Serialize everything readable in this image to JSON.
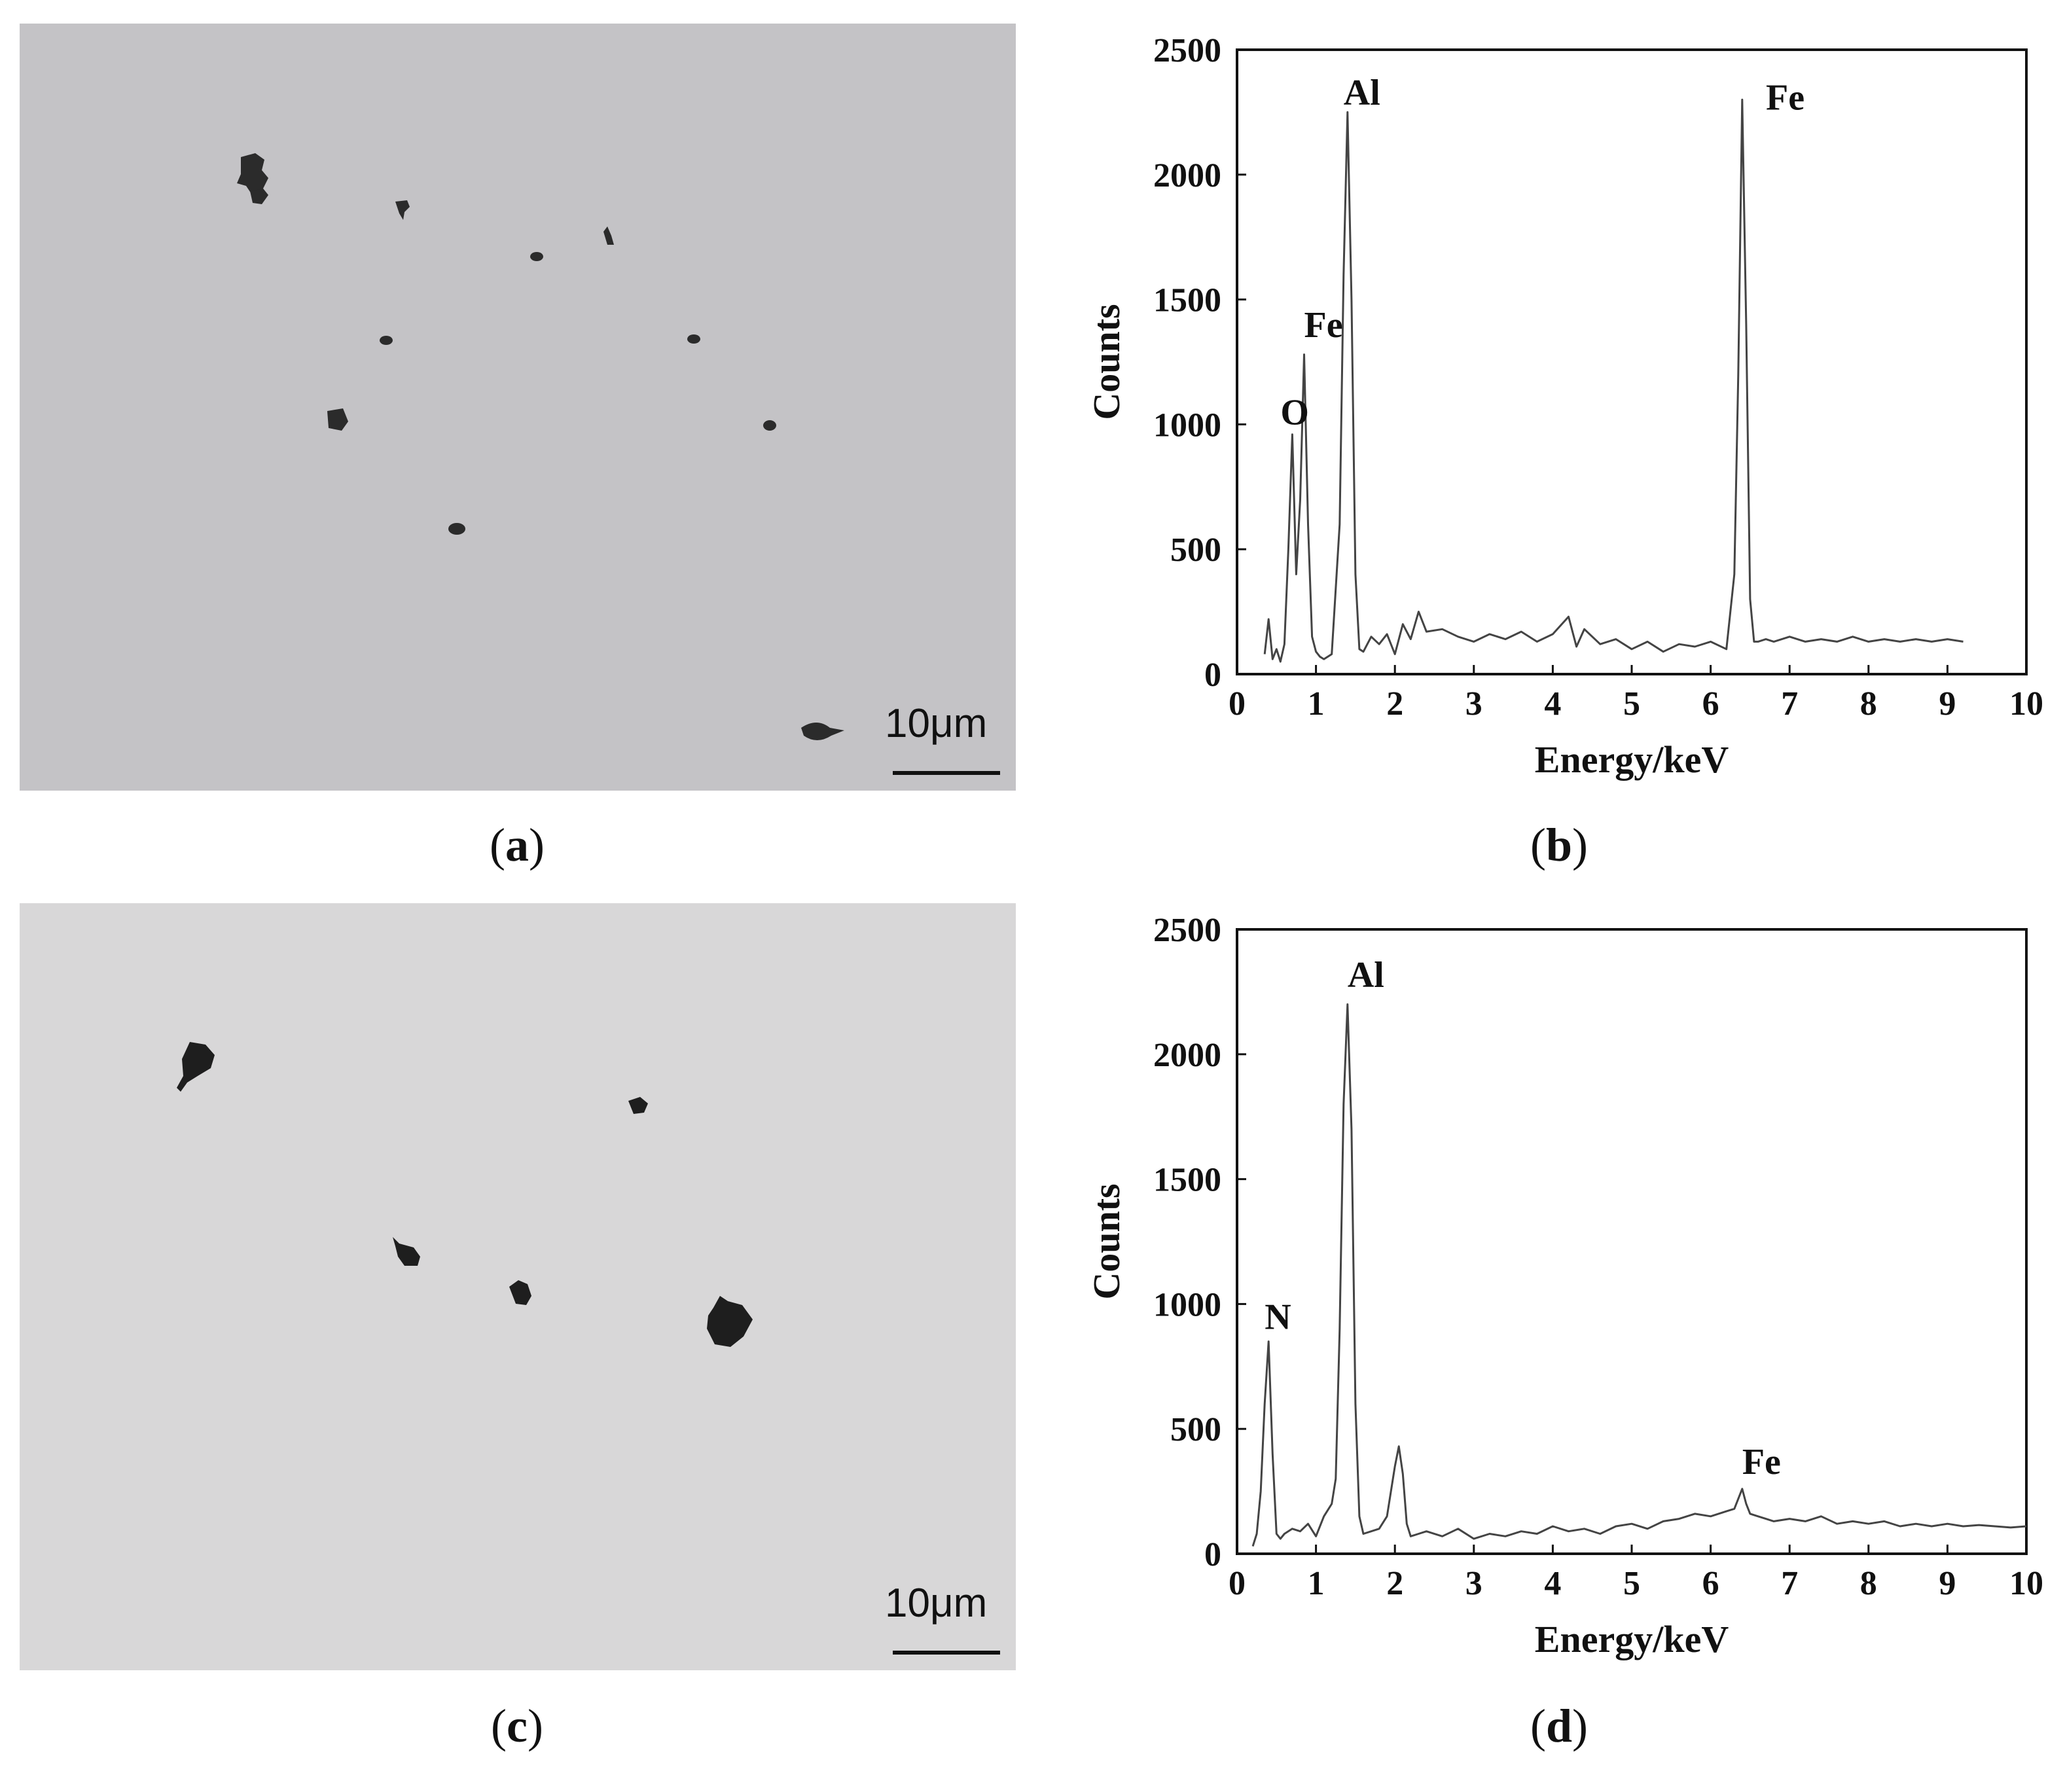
{
  "panels": {
    "a": {
      "caption_letter": "a",
      "scale_label": "10μm",
      "background": "#c4c3c6",
      "inclusion_color": "#2b2b2b"
    },
    "c": {
      "caption_letter": "c",
      "scale_label": "10μm",
      "background": "#d8d7d8",
      "inclusion_color": "#1e1e1e"
    },
    "b": {
      "caption_letter": "b"
    },
    "d": {
      "caption_letter": "d"
    }
  },
  "chart_data": [
    {
      "panel": "b",
      "type": "line",
      "title": "",
      "xlabel": "Energy/keV",
      "ylabel": "Counts",
      "xlim": [
        0,
        10
      ],
      "ylim": [
        0,
        2500
      ],
      "xticks": [
        0,
        1,
        2,
        3,
        4,
        5,
        6,
        7,
        8,
        9,
        10
      ],
      "yticks": [
        0,
        500,
        1000,
        1500,
        2000,
        2500
      ],
      "line_color": "#444444",
      "series": [
        {
          "x": [
            0.35,
            0.4,
            0.45,
            0.5,
            0.55,
            0.6,
            0.65,
            0.7,
            0.75,
            0.8,
            0.85,
            0.9,
            0.95,
            1.0,
            1.05,
            1.1,
            1.2,
            1.3,
            1.35,
            1.4,
            1.45,
            1.5,
            1.55,
            1.6,
            1.7,
            1.8,
            1.9,
            2.0,
            2.1,
            2.2,
            2.3,
            2.4,
            2.6,
            2.8,
            3.0,
            3.2,
            3.4,
            3.6,
            3.8,
            4.0,
            4.2,
            4.3,
            4.4,
            4.6,
            4.8,
            5.0,
            5.2,
            5.4,
            5.6,
            5.8,
            6.0,
            6.2,
            6.3,
            6.35,
            6.4,
            6.45,
            6.5,
            6.55,
            6.6,
            6.7,
            6.8,
            7.0,
            7.2,
            7.4,
            7.6,
            7.8,
            8.0,
            8.2,
            8.4,
            8.6,
            8.8,
            9.0,
            9.2
          ],
          "y": [
            80,
            220,
            60,
            100,
            50,
            120,
            500,
            960,
            400,
            700,
            1280,
            600,
            150,
            90,
            70,
            60,
            80,
            600,
            1600,
            2250,
            1500,
            400,
            100,
            90,
            150,
            120,
            160,
            80,
            200,
            140,
            250,
            170,
            180,
            150,
            130,
            160,
            140,
            170,
            130,
            160,
            230,
            110,
            180,
            120,
            140,
            100,
            130,
            90,
            120,
            110,
            130,
            100,
            400,
            1200,
            2300,
            1400,
            300,
            130,
            130,
            140,
            130,
            150,
            130,
            140,
            130,
            150,
            130,
            140,
            130,
            140,
            130,
            140,
            130
          ]
        }
      ],
      "annotations": [
        {
          "text": "O",
          "x": 0.55,
          "y": 1000
        },
        {
          "text": "Fe",
          "x": 0.85,
          "y": 1350
        },
        {
          "text": "Al",
          "x": 1.35,
          "y": 2280
        },
        {
          "text": "Fe",
          "x": 6.7,
          "y": 2260
        }
      ]
    },
    {
      "panel": "d",
      "type": "line",
      "title": "",
      "xlabel": "Energy/keV",
      "ylabel": "Counts",
      "xlim": [
        0,
        10
      ],
      "ylim": [
        0,
        2500
      ],
      "xticks": [
        0,
        1,
        2,
        3,
        4,
        5,
        6,
        7,
        8,
        9,
        10
      ],
      "yticks": [
        0,
        500,
        1000,
        1500,
        2000,
        2500
      ],
      "line_color": "#444444",
      "series": [
        {
          "x": [
            0.2,
            0.25,
            0.3,
            0.35,
            0.4,
            0.45,
            0.5,
            0.55,
            0.6,
            0.7,
            0.8,
            0.9,
            1.0,
            1.1,
            1.2,
            1.25,
            1.3,
            1.35,
            1.4,
            1.45,
            1.5,
            1.55,
            1.6,
            1.7,
            1.8,
            1.9,
            2.0,
            2.05,
            2.1,
            2.15,
            2.2,
            2.3,
            2.4,
            2.6,
            2.8,
            3.0,
            3.2,
            3.4,
            3.6,
            3.8,
            4.0,
            4.2,
            4.4,
            4.6,
            4.8,
            5.0,
            5.2,
            5.4,
            5.6,
            5.8,
            6.0,
            6.2,
            6.3,
            6.4,
            6.45,
            6.5,
            6.6,
            6.7,
            6.8,
            7.0,
            7.2,
            7.4,
            7.6,
            7.8,
            8.0,
            8.2,
            8.4,
            8.6,
            8.8,
            9.0,
            9.2,
            9.4,
            9.6,
            9.8,
            10.0
          ],
          "y": [
            30,
            80,
            250,
            600,
            850,
            400,
            80,
            60,
            80,
            100,
            90,
            120,
            70,
            150,
            200,
            300,
            900,
            1800,
            2200,
            1700,
            600,
            150,
            80,
            90,
            100,
            150,
            350,
            430,
            320,
            120,
            70,
            80,
            90,
            70,
            100,
            60,
            80,
            70,
            90,
            80,
            110,
            90,
            100,
            80,
            110,
            120,
            100,
            130,
            140,
            160,
            150,
            170,
            180,
            260,
            200,
            160,
            150,
            140,
            130,
            140,
            130,
            150,
            120,
            130,
            120,
            130,
            110,
            120,
            110,
            120,
            110,
            115,
            110,
            105,
            110
          ]
        }
      ],
      "annotations": [
        {
          "text": "N",
          "x": 0.35,
          "y": 900
        },
        {
          "text": "Al",
          "x": 1.4,
          "y": 2270
        },
        {
          "text": "Fe",
          "x": 6.4,
          "y": 320
        }
      ]
    }
  ]
}
